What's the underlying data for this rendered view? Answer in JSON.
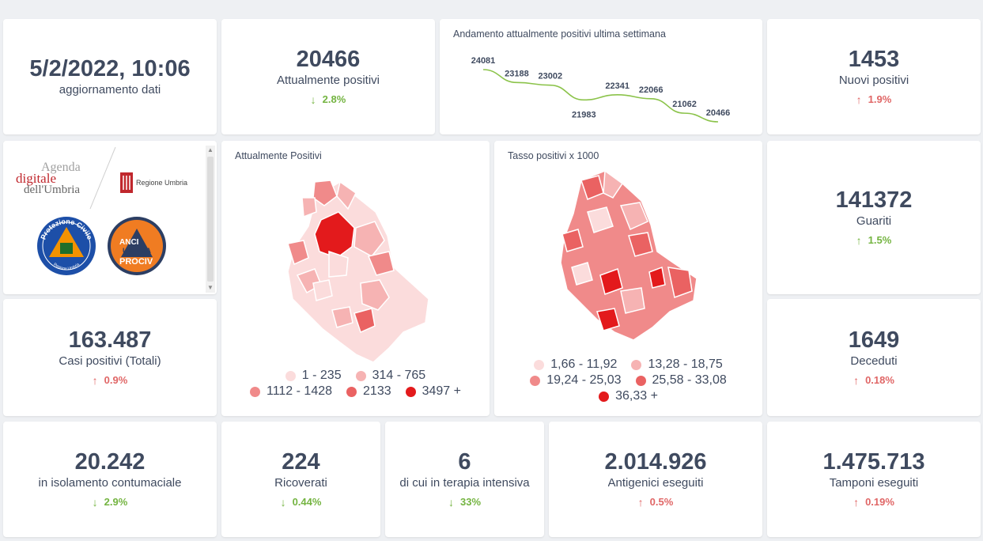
{
  "update": {
    "value": "5/2/2022, 10:06",
    "label": "aggiornamento dati"
  },
  "attualmente_positivi": {
    "value": "20466",
    "label": "Attualmente positivi",
    "delta": "2.8%",
    "direction": "down"
  },
  "trend": {
    "title": "Andamento attualmente positivi ultima settimana",
    "labels": [
      "24081",
      "23188",
      "23002",
      "21983",
      "22341",
      "22066",
      "21062",
      "20466"
    ],
    "chart_data": {
      "type": "line",
      "title": "Andamento attualmente positivi ultima settimana",
      "values": [
        24081,
        23188,
        23002,
        21983,
        22341,
        22066,
        21062,
        20466
      ],
      "line_color": "#8bc34a"
    }
  },
  "nuovi_positivi": {
    "value": "1453",
    "label": "Nuovi positivi",
    "delta": "1.9%",
    "direction": "up"
  },
  "logos": {
    "agenda_line1": "Agenda",
    "agenda_line2": "digitale",
    "agenda_line3": "dell'Umbria",
    "regione": "Regione Umbria",
    "protezione_top": "Protezione Civile",
    "protezione_bottom": "Regione Umbria",
    "anci_line1": "ANCI",
    "anci_line2": "UMBRIA",
    "anci_line3": "PROCIV"
  },
  "map_positivi": {
    "title": "Attualmente Positivi",
    "legend": [
      {
        "label": "1 - 235",
        "color": "#fbdcdc"
      },
      {
        "label": "314 - 765",
        "color": "#f6b3b3"
      },
      {
        "label": "1112 - 1428",
        "color": "#f08a8a"
      },
      {
        "label": "2133",
        "color": "#ea6262"
      },
      {
        "label": "3497 +",
        "color": "#e31a1c"
      }
    ]
  },
  "map_tasso": {
    "title": "Tasso positivi x 1000",
    "legend": [
      {
        "label": "1,66 - 11,92",
        "color": "#fbdcdc"
      },
      {
        "label": "13,28 - 18,75",
        "color": "#f6b3b3"
      },
      {
        "label": "19,24 - 25,03",
        "color": "#f08a8a"
      },
      {
        "label": "25,58 - 33,08",
        "color": "#ea6262"
      },
      {
        "label": "36,33 +",
        "color": "#e31a1c"
      }
    ]
  },
  "guariti": {
    "value": "141372",
    "label": "Guariti",
    "delta": "1.5%",
    "direction": "down"
  },
  "casi_totali": {
    "value": "163.487",
    "label": "Casi positivi (Totali)",
    "delta": "0.9%",
    "direction": "up"
  },
  "deceduti": {
    "value": "1649",
    "label": "Deceduti",
    "delta": "0.18%",
    "direction": "up"
  },
  "isolamento": {
    "value": "20.242",
    "label": "in isolamento contumaciale",
    "delta": "2.9%",
    "direction": "down"
  },
  "ricoverati": {
    "value": "224",
    "label": "Ricoverati",
    "delta": "0.44%",
    "direction": "down"
  },
  "terapia": {
    "value": "6",
    "label": "di cui in terapia intensiva",
    "delta": "33%",
    "direction": "down"
  },
  "antigenici": {
    "value": "2.014.926",
    "label": "Antigenici eseguiti",
    "delta": "0.5%",
    "direction": "up"
  },
  "tamponi": {
    "value": "1.475.713",
    "label": "Tamponi eseguiti",
    "delta": "0.19%",
    "direction": "up"
  },
  "icons": {
    "down": "arrow-down-icon",
    "up": "arrow-up-icon"
  },
  "colors": {
    "up": "#e06666",
    "down": "#74b441",
    "text": "#3f4a5f"
  }
}
